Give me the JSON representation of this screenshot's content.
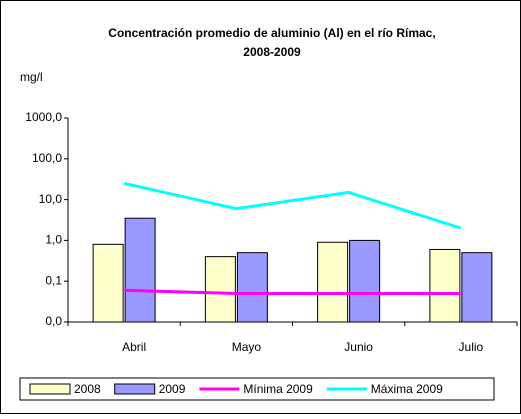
{
  "chart_data": {
    "type": "bar",
    "title": [
      "Concentración promedio de aluminio (Al) en el  río Rímac,",
      "2008-2009"
    ],
    "ylabel": "mg/l",
    "categories": [
      "Abril",
      "Mayo",
      "Junio",
      "Julio"
    ],
    "series": [
      {
        "name": "2008",
        "type": "bar",
        "color": "#ffffcc",
        "values": [
          0.8,
          0.4,
          0.9,
          0.6
        ]
      },
      {
        "name": "2009",
        "type": "bar",
        "color": "#9999ff",
        "values": [
          3.5,
          0.5,
          1.0,
          0.5
        ]
      },
      {
        "name": "Mínima 2009",
        "type": "line",
        "color": "#ff00ff",
        "values": [
          0.06,
          0.05,
          0.05,
          0.05
        ]
      },
      {
        "name": "Máxima 2009",
        "type": "line",
        "color": "#00ffff",
        "values": [
          25,
          6,
          15,
          2
        ]
      }
    ],
    "log_scale": true,
    "ylim": [
      0.01,
      1000
    ],
    "yticks": [
      {
        "value": 0.01,
        "label": "0,0"
      },
      {
        "value": 0.1,
        "label": "0,1"
      },
      {
        "value": 1,
        "label": "1,0"
      },
      {
        "value": 10,
        "label": "10,0"
      },
      {
        "value": 100,
        "label": "100,0"
      },
      {
        "value": 1000,
        "label": "1000,0"
      }
    ],
    "grid": false,
    "legend": "bottom"
  }
}
